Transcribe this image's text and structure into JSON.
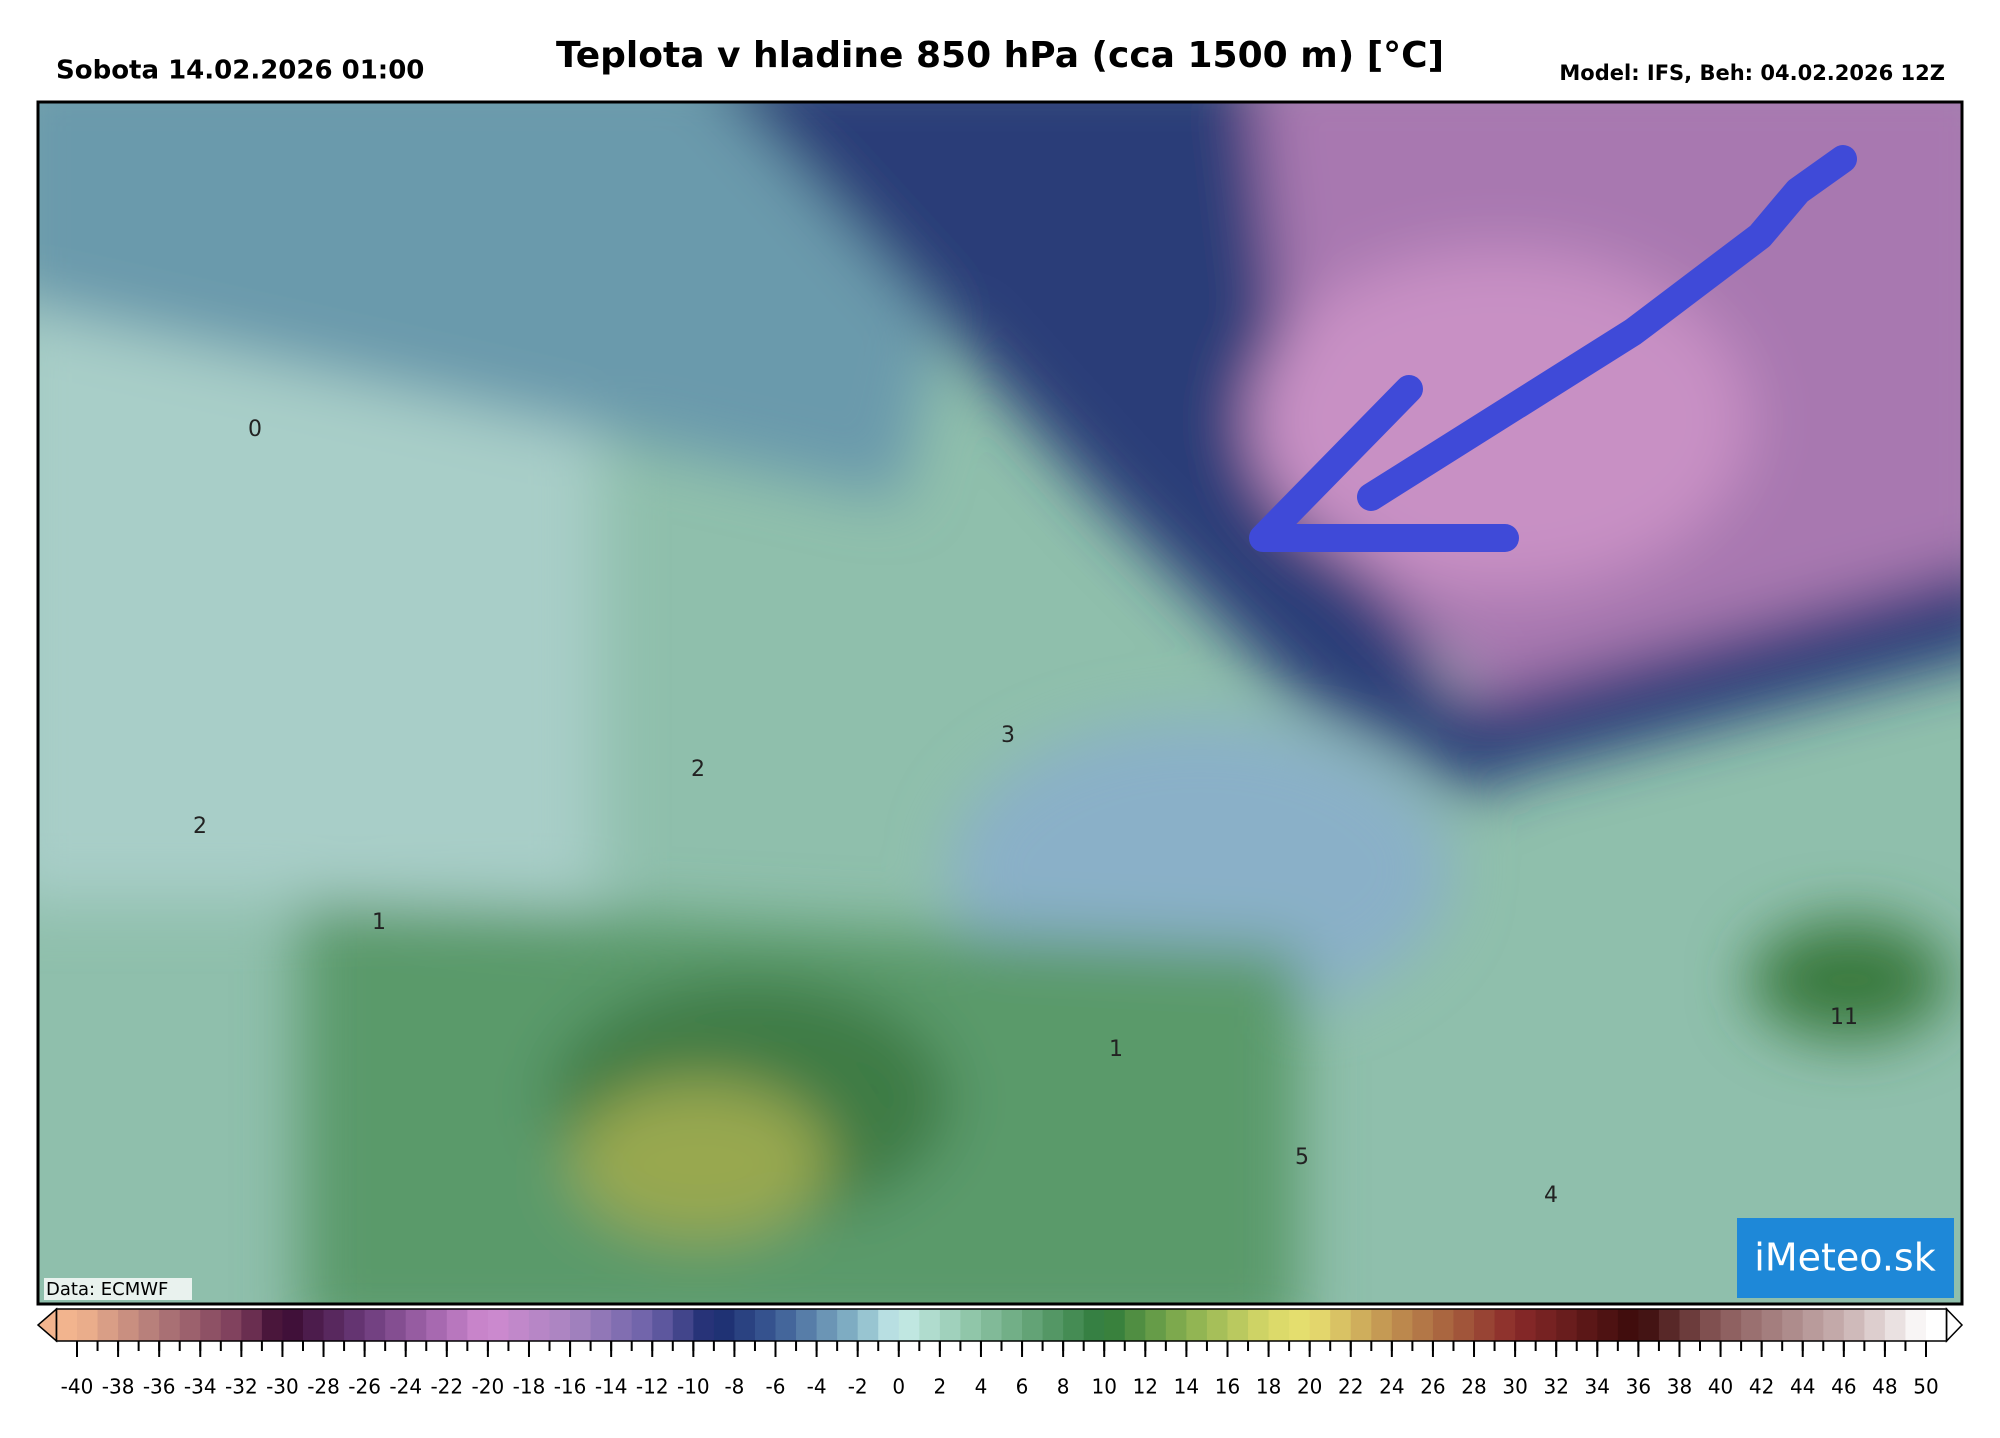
{
  "header": {
    "left": "Sobota 14.02.2026 01:00",
    "title": "Teplota v hladine 850 hPa (cca 1500 m) [°C]",
    "right": "Model: IFS, Beh: 04.02.2026 12Z"
  },
  "map": {
    "labels": [
      "0",
      "2",
      "2",
      "1",
      "3",
      "1",
      "5",
      "4",
      "11"
    ],
    "source": "Data: ECMWF",
    "logo": "iMeteo.sk"
  },
  "colorbar": {
    "ticks": [
      -40,
      -38,
      -36,
      -34,
      -32,
      -30,
      -28,
      -26,
      -24,
      -22,
      -20,
      -18,
      -16,
      -14,
      -12,
      -10,
      -8,
      -6,
      -4,
      -2,
      0,
      2,
      4,
      6,
      8,
      10,
      12,
      14,
      16,
      18,
      20,
      22,
      24,
      26,
      28,
      30,
      32,
      34,
      36,
      38,
      40,
      42,
      44,
      46,
      48,
      50
    ],
    "stops": [
      {
        "value": -40,
        "color": "#f2b48e"
      },
      {
        "value": -36,
        "color": "#b07878"
      },
      {
        "value": -32,
        "color": "#7a3a5a"
      },
      {
        "value": -30,
        "color": "#3a0a30"
      },
      {
        "value": -26,
        "color": "#6a3a7a"
      },
      {
        "value": -22,
        "color": "#b070b8"
      },
      {
        "value": -20,
        "color": "#d08ad0"
      },
      {
        "value": -16,
        "color": "#a884c0"
      },
      {
        "value": -12,
        "color": "#6a60a8"
      },
      {
        "value": -9,
        "color": "#1a2a6e"
      },
      {
        "value": -6,
        "color": "#3a5a94"
      },
      {
        "value": -2,
        "color": "#88b8c8"
      },
      {
        "value": 0,
        "color": "#c8ecea"
      },
      {
        "value": 4,
        "color": "#88c0a0"
      },
      {
        "value": 10,
        "color": "#2e7a3a"
      },
      {
        "value": 14,
        "color": "#88b050"
      },
      {
        "value": 18,
        "color": "#d8d868"
      },
      {
        "value": 20,
        "color": "#e8e070"
      },
      {
        "value": 24,
        "color": "#c09050"
      },
      {
        "value": 30,
        "color": "#8a2a2a"
      },
      {
        "value": 36,
        "color": "#3a0a0a"
      },
      {
        "value": 40,
        "color": "#8a5a5a"
      },
      {
        "value": 46,
        "color": "#c8b0b0"
      },
      {
        "value": 50,
        "color": "#ffffff"
      }
    ]
  }
}
